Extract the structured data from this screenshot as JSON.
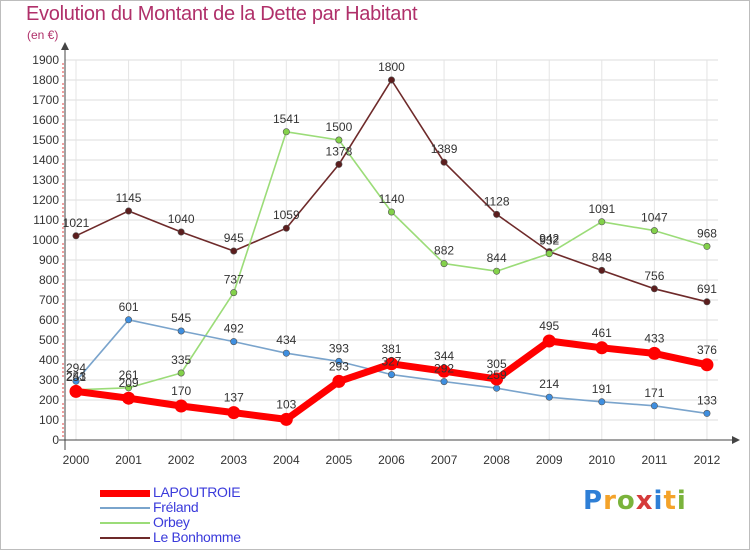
{
  "header": {
    "title": "Evolution du Montant de la Dette par Habitant",
    "subtitle": "(en €)"
  },
  "logo": {
    "text": "Proxiti",
    "colors": [
      "#2e7fd6",
      "#f4a32a",
      "#7ab33b",
      "#d53a3a",
      "#2e7fd6",
      "#f4a32a",
      "#7ab33b"
    ]
  },
  "chart_data": {
    "type": "line",
    "x": [
      "2000",
      "2001",
      "2002",
      "2003",
      "2004",
      "2005",
      "2006",
      "2007",
      "2008",
      "2009",
      "2010",
      "2011",
      "2012"
    ],
    "yticks": [
      "0",
      "100",
      "200",
      "300",
      "400",
      "500",
      "600",
      "700",
      "800",
      "900",
      "1000",
      "1100",
      "1200",
      "1300",
      "1400",
      "1500",
      "1600",
      "1700",
      "1800",
      "1900"
    ],
    "ylim": [
      0,
      1900
    ],
    "grid": true,
    "legend_position": "bottom-left",
    "series": [
      {
        "name": "LAPOUTROIE",
        "values": [
          243,
          209,
          170,
          137,
          103,
          293,
          381,
          344,
          305,
          495,
          461,
          433,
          376
        ],
        "labels": [
          "243",
          "209",
          "170",
          "137",
          "103",
          "293",
          "381",
          "344",
          "305",
          "495",
          "461",
          "433",
          "376"
        ],
        "color": "#ff0000",
        "marker_color": "#ff0000"
      },
      {
        "name": "Fréland",
        "values": [
          294,
          601,
          545,
          492,
          434,
          393,
          327,
          292,
          259,
          214,
          191,
          171,
          133
        ],
        "labels": [
          "294",
          "601",
          "545",
          "492",
          "434",
          "393",
          "327",
          "292",
          "259",
          "214",
          "191",
          "171",
          "133"
        ],
        "color": "#7aa4cc",
        "marker_color": "#3f8fe0"
      },
      {
        "name": "Orbey",
        "values": [
          251,
          261,
          335,
          737,
          1541,
          1500,
          1140,
          882,
          844,
          932,
          1091,
          1047,
          968
        ],
        "labels": [
          "251",
          "261",
          "335",
          "737",
          "1541",
          "1500",
          "1140",
          "882",
          "844",
          "932",
          "1091",
          "1047",
          "968"
        ],
        "color": "#9bdc78",
        "marker_color": "#83d14a"
      },
      {
        "name": "Le Bonhomme",
        "values": [
          1021,
          1145,
          1040,
          945,
          1059,
          1378,
          1800,
          1389,
          1128,
          942,
          848,
          756,
          691
        ],
        "labels": [
          "1021",
          "1145",
          "1040",
          "945",
          "1059",
          "1378",
          "1800",
          "1389",
          "1128",
          "942",
          "848",
          "756",
          "691"
        ],
        "color": "#6e2a2a",
        "marker_color": "#5c1e1e"
      }
    ]
  }
}
